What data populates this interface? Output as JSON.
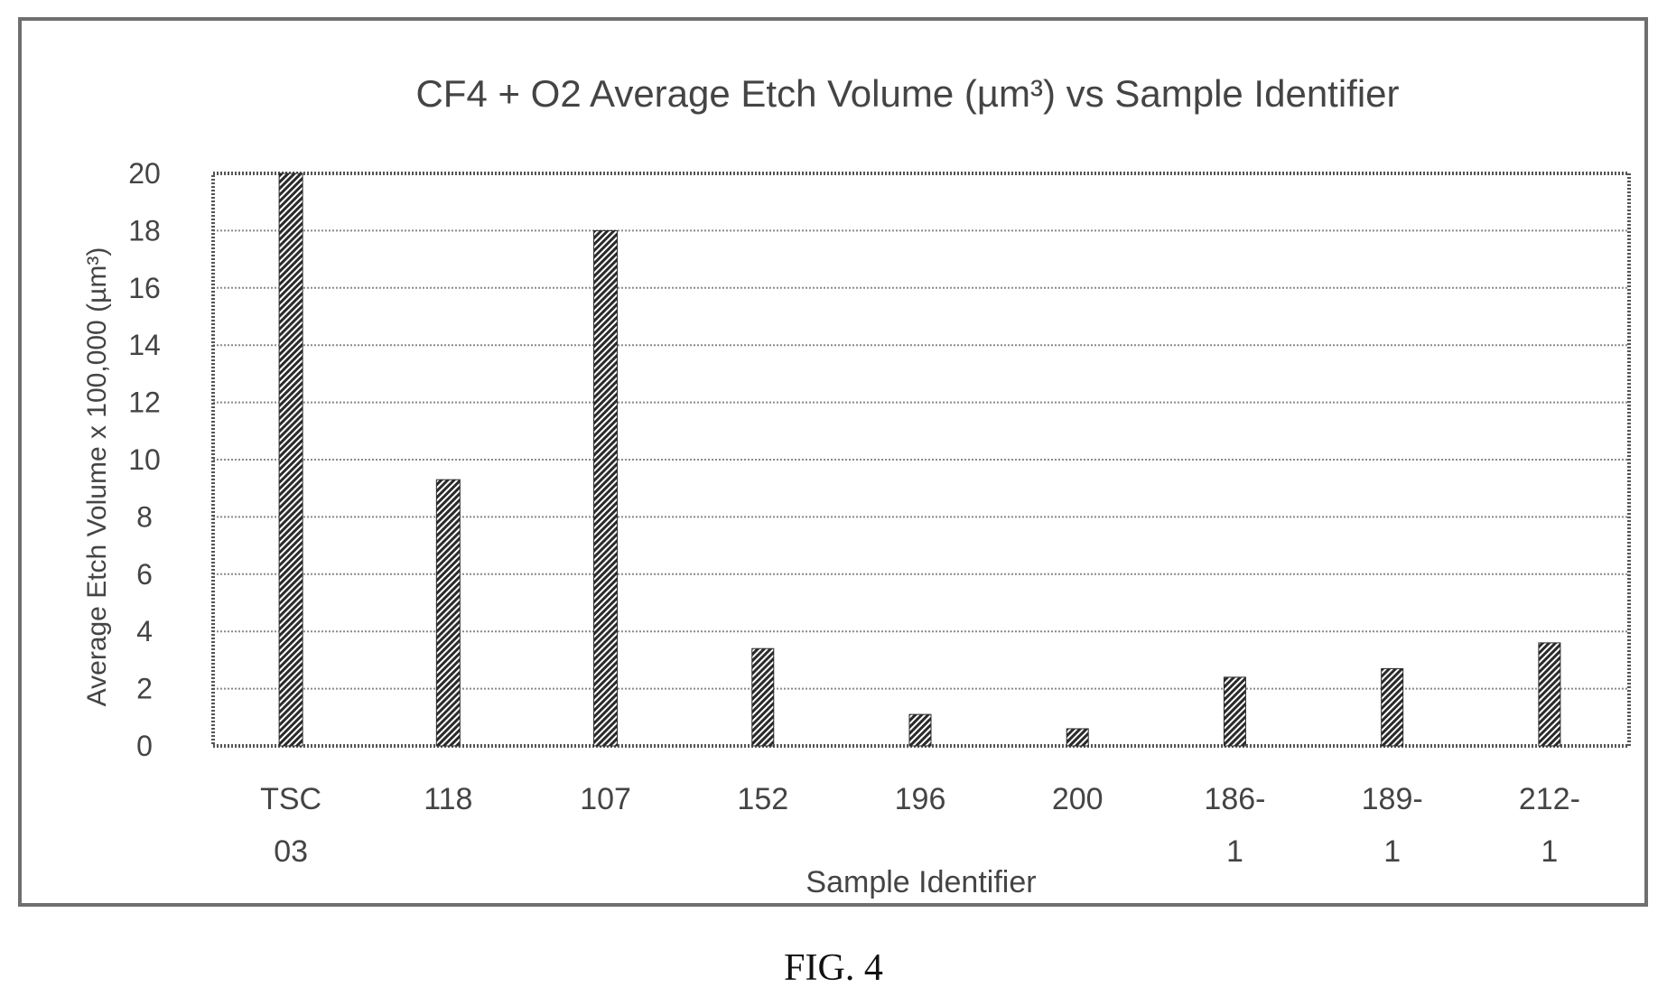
{
  "caption": "FIG. 4",
  "chart_data": {
    "type": "bar",
    "title": "CF4 + O2 Average Etch Volume (µm³) vs Sample Identifier",
    "xlabel": "Sample Identifier",
    "ylabel": "Average Etch Volume x 100,000 (µm³)",
    "categories": [
      [
        "TSC",
        "03"
      ],
      [
        "118"
      ],
      [
        "107"
      ],
      [
        "152"
      ],
      [
        "196"
      ],
      [
        "200"
      ],
      [
        "186-",
        "1"
      ],
      [
        "189-",
        "1"
      ],
      [
        "212-",
        "1"
      ]
    ],
    "values": [
      20,
      9.3,
      18,
      3.4,
      1.1,
      0.6,
      2.4,
      2.7,
      3.6
    ],
    "ylim": [
      0,
      20
    ],
    "yticks": [
      "0",
      "2",
      "4",
      "6",
      "8",
      "10",
      "12",
      "14",
      "16",
      "18",
      "20"
    ],
    "grid": true,
    "legend": "none",
    "bar_color": "#2a2a2a"
  }
}
